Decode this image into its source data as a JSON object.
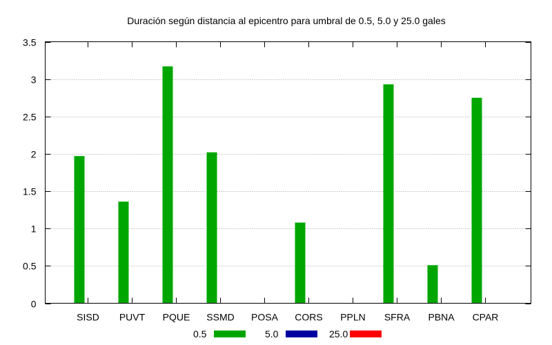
{
  "chart_data": {
    "type": "bar",
    "title": "Duración según distancia al epicentro para umbral de 0.5, 5.0 y 25.0 gales",
    "xlabel": "",
    "ylabel": "",
    "categories": [
      "SISD",
      "PUVT",
      "PQUE",
      "SSMD",
      "POSA",
      "CORS",
      "PPLN",
      "SFRA",
      "PBNA",
      "CPAR"
    ],
    "series": [
      {
        "name": "0.5",
        "color": "#00a600",
        "values": [
          1.97,
          1.36,
          3.17,
          2.02,
          0,
          1.08,
          0,
          2.93,
          0.51,
          2.75
        ]
      },
      {
        "name": "5.0",
        "color": "#0000a0",
        "values": [
          0,
          0,
          0,
          0,
          0,
          0,
          0,
          0,
          0,
          0
        ]
      },
      {
        "name": "25.0",
        "color": "#ff0000",
        "values": [
          0,
          0,
          0,
          0,
          0,
          0,
          0,
          0,
          0,
          0
        ]
      }
    ],
    "ylim": [
      0,
      3.5
    ],
    "yticks": [
      "0",
      "0.5",
      "1",
      "1.5",
      "2",
      "2.5",
      "3",
      "3.5"
    ],
    "grid": true,
    "legend_position": "bottom"
  }
}
